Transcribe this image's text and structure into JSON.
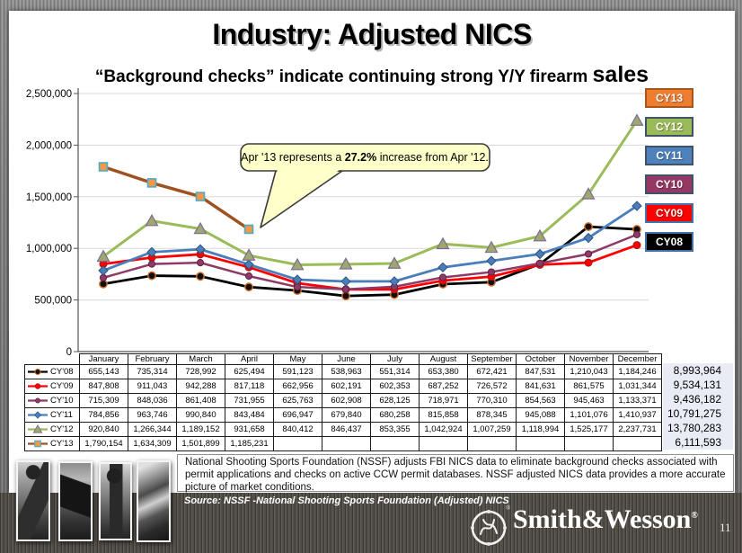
{
  "slide": {
    "title": "Industry: Adjusted NICS",
    "subtitle_main": "“Background checks” indicate continuing strong Y/Y firearm ",
    "subtitle_emphasis": "sales",
    "page_number": "11"
  },
  "callout": {
    "prefix": "Apr '13  represents a ",
    "bold": "27.2%",
    "suffix": " increase from Apr '12."
  },
  "chart_data": {
    "type": "line",
    "title": "",
    "xlabel": "",
    "ylabel": "",
    "y_axis": {
      "min": 0,
      "max": 2500000,
      "step": 500000,
      "grid": true
    },
    "legend_position": "right",
    "categories": [
      "January",
      "February",
      "March",
      "April",
      "May",
      "June",
      "July",
      "August",
      "September",
      "October",
      "November",
      "December"
    ],
    "series": [
      {
        "name": "CY'08",
        "color": "#000000",
        "values": [
          655143,
          735314,
          728992,
          625494,
          591123,
          538963,
          551314,
          653380,
          672421,
          847531,
          1210043,
          1184246
        ],
        "total": 8993964
      },
      {
        "name": "CY'09",
        "color": "#FF0000",
        "values": [
          847808,
          911043,
          942288,
          817118,
          662956,
          602191,
          602353,
          687252,
          726572,
          841631,
          861575,
          1031344
        ],
        "total": 9534131
      },
      {
        "name": "CY'10",
        "color": "#8E3A66",
        "values": [
          715309,
          848036,
          861408,
          731955,
          625763,
          602908,
          628125,
          718971,
          770310,
          854563,
          945463,
          1133371
        ],
        "total": 9436182
      },
      {
        "name": "CY'11",
        "color": "#4A7EBB",
        "values": [
          784856,
          963746,
          990840,
          843484,
          696947,
          679840,
          680258,
          815858,
          878345,
          945088,
          1101076,
          1410937
        ],
        "total": 10791275
      },
      {
        "name": "CY'12",
        "color": "#9BBB59",
        "values": [
          920840,
          1266344,
          1189152,
          931658,
          840412,
          846437,
          853355,
          1042924,
          1007259,
          1118994,
          1525177,
          2237731
        ],
        "total": 13780283
      },
      {
        "name": "CY'13",
        "color": "#A0511F",
        "values": [
          1790154,
          1634309,
          1501899,
          1185231,
          null,
          null,
          null,
          null,
          null,
          null,
          null,
          null
        ],
        "total": 6111593
      }
    ],
    "legend": [
      {
        "label": "CY13",
        "bg": "#ED7D31",
        "border": "#A9561B"
      },
      {
        "label": "CY12",
        "bg": "#9BBB59",
        "border": "#3F5266"
      },
      {
        "label": "CY11",
        "bg": "#4F81BD",
        "border": "#3F5266"
      },
      {
        "label": "CY10",
        "bg": "#953864",
        "border": "#3F5266"
      },
      {
        "label": "CY09",
        "bg": "#FE0000",
        "border": "#4472A8"
      },
      {
        "label": "CY08",
        "bg": "#000000",
        "border": "#4472A8"
      }
    ]
  },
  "footer": {
    "note": "National Shooting Sports Foundation (NSSF) adjusts FBI NICS data to eliminate background checks associated with permit applications and checks on active CCW permit databases. NSSF adjusted NICS data provides a more accurate picture of market conditions.",
    "source": "Source: NSSF -National Shooting Sports Foundation (Adjusted) NICS",
    "brand": "Smith&Wesson",
    "registered": "®"
  }
}
